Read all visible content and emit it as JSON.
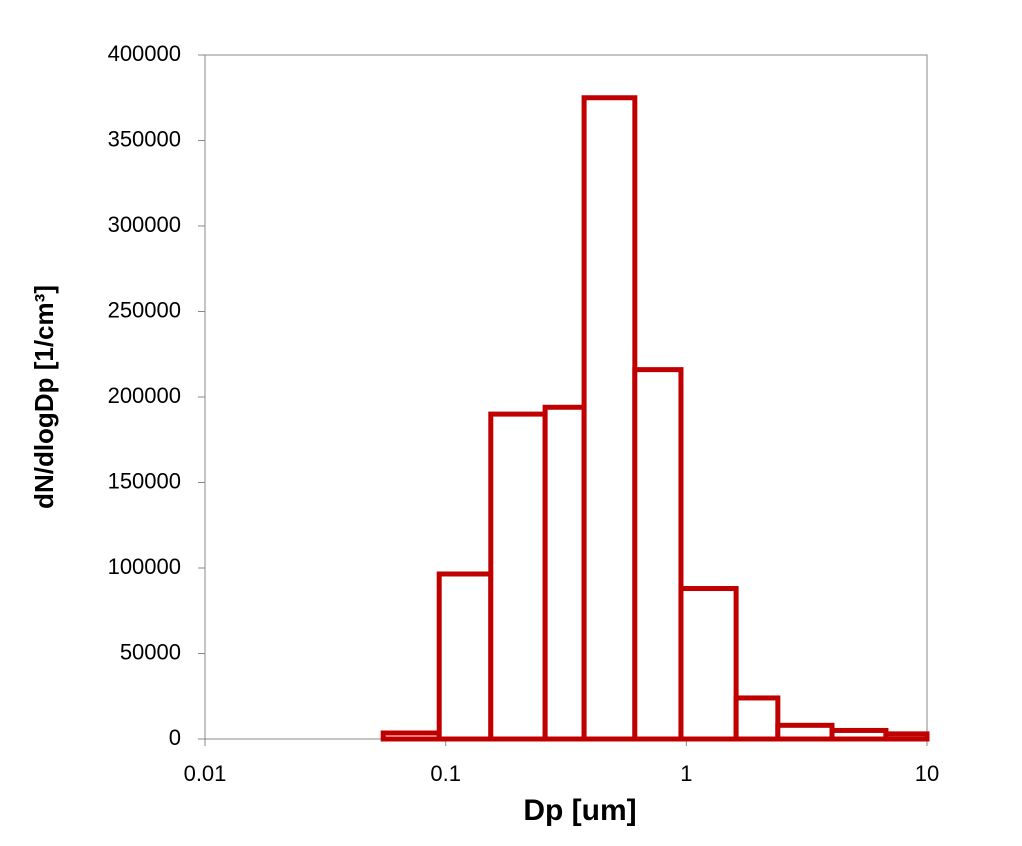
{
  "chart_data": {
    "type": "histogram",
    "x_label": "Dp [um]",
    "y_label": "dN/dlogDp  [1/cm³]",
    "bins": [
      0.0166,
      0.0276,
      0.055,
      0.094,
      0.154,
      0.259,
      0.376,
      0.611,
      0.95,
      1.61,
      2.4,
      4.03,
      6.75,
      10
    ],
    "values": [
      0,
      0,
      3500,
      96500,
      190000,
      194000,
      375000,
      216000,
      88000,
      24000,
      8000,
      5000,
      3000
    ],
    "color": "#c00000",
    "xscale": "log",
    "xlim": [
      0.01,
      10
    ],
    "xticks": [
      0.01,
      0.1,
      1,
      10
    ],
    "ylim": [
      0,
      400000
    ],
    "yticks": [
      0,
      50000,
      100000,
      150000,
      200000,
      250000,
      300000,
      350000,
      400000
    ]
  }
}
